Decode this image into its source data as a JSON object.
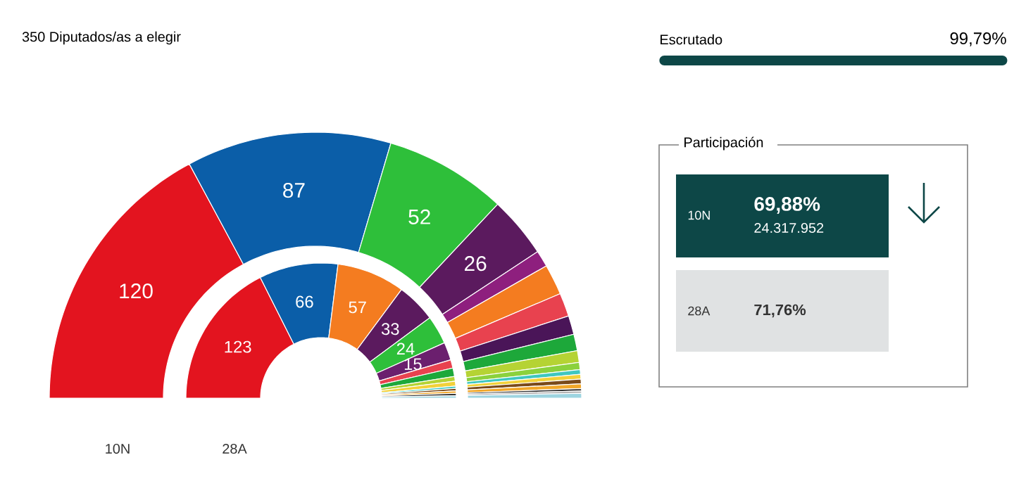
{
  "chart_data": [
    {
      "type": "donut",
      "title": "10N",
      "annotations": [
        "350 Diputados/as a elegir"
      ],
      "categories": [
        null,
        null,
        null,
        null,
        null,
        null,
        null,
        null,
        null,
        null,
        null,
        null,
        null,
        null,
        null,
        null,
        null,
        null
      ],
      "values": [
        120,
        87,
        52,
        26,
        7,
        13,
        10,
        8,
        7,
        5,
        3,
        2,
        2,
        2,
        2,
        1,
        1,
        2
      ],
      "value_labels": [
        "120",
        "87",
        "52",
        "26",
        null,
        null,
        null,
        null,
        null,
        null,
        null,
        null,
        null,
        null,
        null,
        null,
        null,
        null
      ],
      "colors": [
        "#e3141f",
        "#0b5ea8",
        "#2ebf3a",
        "#5b1a5e",
        "#8e1f7e",
        "#f47c20",
        "#e8424f",
        "#4a1558",
        "#1da83a",
        "#b5d334",
        "#8bd13d",
        "#3fc7c0",
        "#f2d13a",
        "#7a4a1a",
        "#f1a72a",
        "#333333",
        "#aaaaaa",
        "#9dd4e0"
      ]
    },
    {
      "type": "donut",
      "title": "28A",
      "categories": [
        null,
        null,
        null,
        null,
        null,
        null,
        null,
        null,
        null,
        null,
        null,
        null,
        null,
        null,
        null
      ],
      "values": [
        123,
        66,
        57,
        33,
        24,
        15,
        7,
        7,
        4,
        4,
        2,
        2,
        2,
        2,
        2
      ],
      "value_labels": [
        "123",
        "66",
        "57",
        "33",
        "24",
        "15",
        null,
        null,
        null,
        null,
        null,
        null,
        null,
        null,
        null
      ],
      "colors": [
        "#e3141f",
        "#0b5ea8",
        "#f47c20",
        "#5b1a5e",
        "#2ebf3a",
        "#6b1f6e",
        "#e8424f",
        "#1da83a",
        "#b5d334",
        "#f2d13a",
        "#3fc7c0",
        "#7a4a1a",
        "#f1a72a",
        "#333333",
        "#9dd4e0"
      ]
    },
    {
      "type": "other",
      "title": "Escrutado",
      "annotations": [
        "99,79%"
      ]
    },
    {
      "type": "other",
      "title": "Participación",
      "annotations": [
        "10N",
        "69,88%",
        "24.317.952",
        "28A",
        "71,76%"
      ]
    }
  ]
}
